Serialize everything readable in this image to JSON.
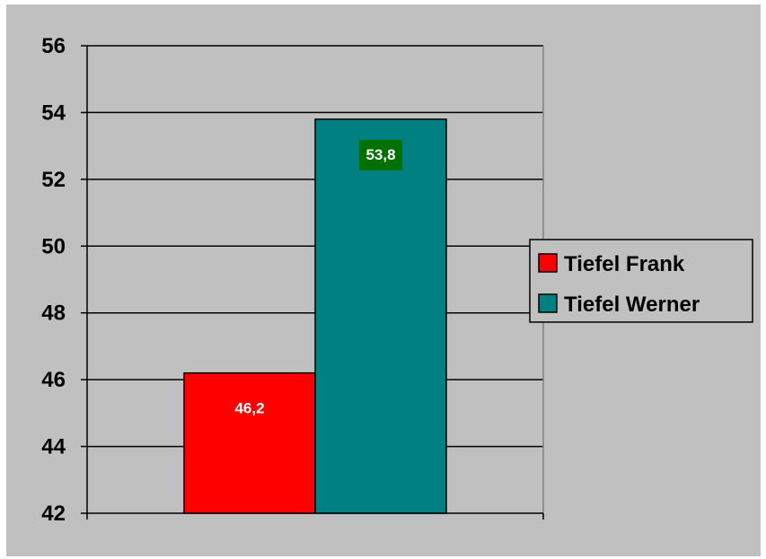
{
  "chart_data": {
    "type": "bar",
    "title": "",
    "xlabel": "",
    "ylabel": "",
    "categories": [
      ""
    ],
    "series": [
      {
        "name": "Tiefel Frank",
        "values": [
          46.2
        ],
        "label": "46,2",
        "color": "#ff0000",
        "label_bg": ""
      },
      {
        "name": "Tiefel Werner",
        "values": [
          53.8
        ],
        "label": "53,8",
        "color": "#008080",
        "label_bg": "#007000"
      }
    ],
    "ylim": [
      42,
      56
    ],
    "yticks": [
      "42",
      "44",
      "46",
      "48",
      "50",
      "52",
      "54",
      "56"
    ],
    "grid": true,
    "legend_position": "right",
    "background_color": "#c0c0c0",
    "plot_background": "#c0c0c0"
  }
}
